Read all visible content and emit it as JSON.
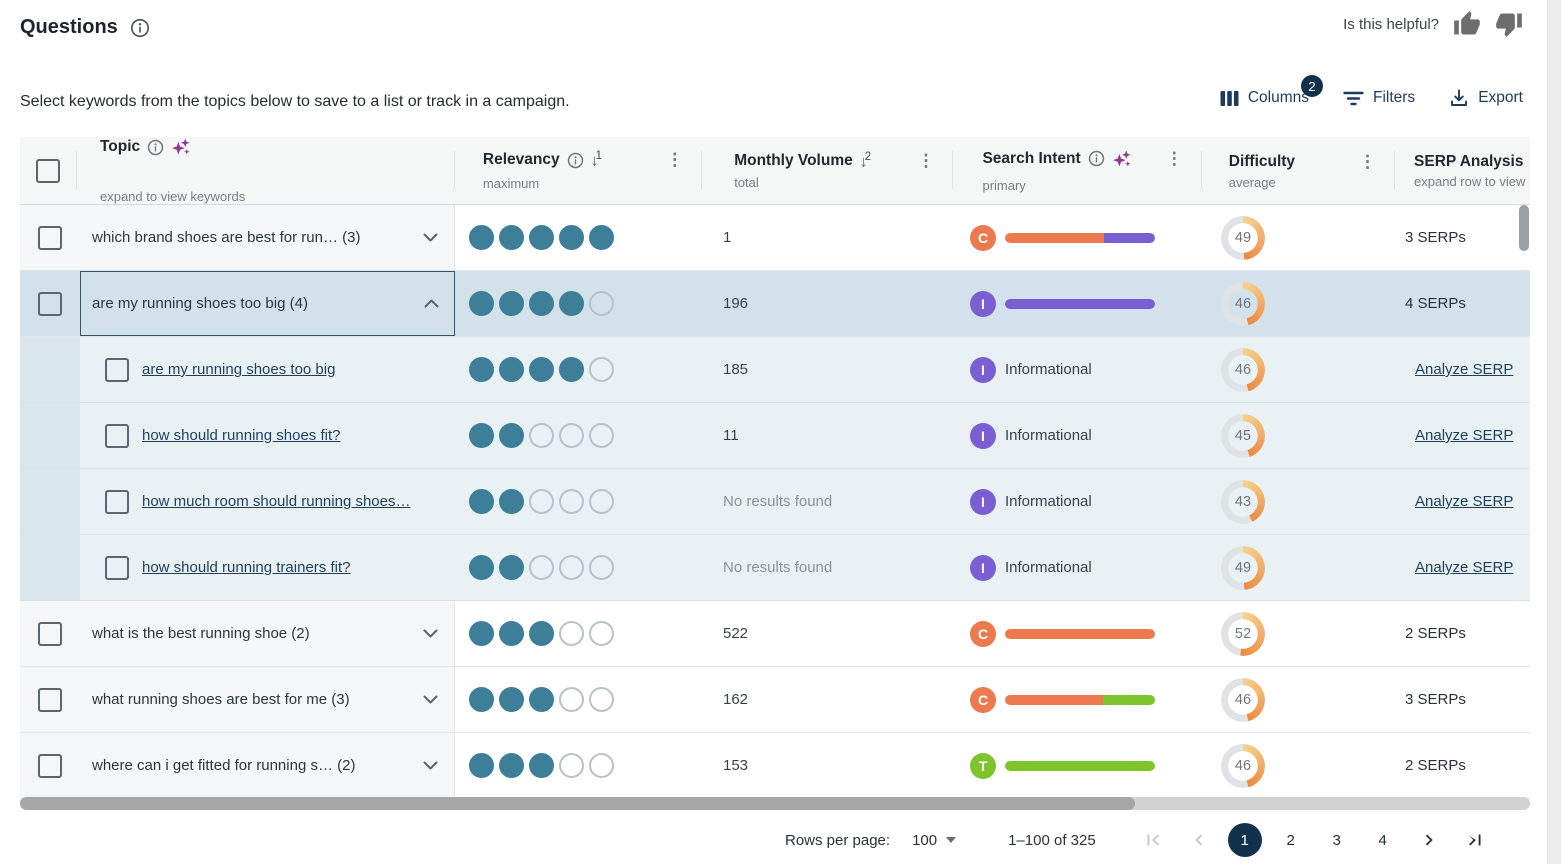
{
  "header": {
    "title": "Questions",
    "helpful_prompt": "Is this helpful?",
    "description": "Select keywords from the topics below to save to a list or track in a campaign.",
    "columns_button": "Columns",
    "columns_badge": "2",
    "filters_button": "Filters",
    "export_button": "Export"
  },
  "icons": {
    "kebab": "⋮",
    "sort_arrow": "↓"
  },
  "table": {
    "header": {
      "topic": {
        "label": "Topic",
        "sub": "expand to view keywords"
      },
      "relevancy": {
        "label": "Relevancy",
        "sub": "maximum",
        "sort_rank": "1"
      },
      "volume": {
        "label": "Monthly Volume",
        "sub": "total",
        "sort_rank": "2"
      },
      "intent": {
        "label": "Search Intent",
        "sub": "primary"
      },
      "difficulty": {
        "label": "Difficulty",
        "sub": "average"
      },
      "serp": {
        "label": "SERP Analysis",
        "sub": "expand row to view"
      }
    },
    "rows": [
      {
        "kind": "topic",
        "expanded": false,
        "label": "which brand shoes are best for run… (3)",
        "relevancy": 5,
        "volume": "1",
        "intent_badge": "C",
        "intent_segments": [
          {
            "type": "commercial",
            "pct": 66
          },
          {
            "type": "informational",
            "pct": 34
          }
        ],
        "difficulty": 49,
        "serp": "3 SERPs"
      },
      {
        "kind": "topic",
        "expanded": true,
        "label": "are my running shoes too big (4)",
        "relevancy": 4,
        "volume": "196",
        "intent_badge": "I",
        "intent_segments": [
          {
            "type": "informational",
            "pct": 100
          }
        ],
        "difficulty": 46,
        "serp": "4 SERPs"
      },
      {
        "kind": "keyword",
        "label": "are my running shoes too big",
        "relevancy": 4,
        "volume": "185",
        "intent_badge": "I",
        "intent_label": "Informational",
        "difficulty": 46,
        "serp": "Analyze SERP"
      },
      {
        "kind": "keyword",
        "label": "how should running shoes fit?",
        "relevancy": 2,
        "volume": "11",
        "intent_badge": "I",
        "intent_label": "Informational",
        "difficulty": 45,
        "serp": "Analyze SERP"
      },
      {
        "kind": "keyword",
        "label": "how much room should running shoes…",
        "relevancy": 2,
        "volume": "No results found",
        "intent_badge": "I",
        "intent_label": "Informational",
        "difficulty": 43,
        "serp": "Analyze SERP"
      },
      {
        "kind": "keyword",
        "label": "how should running trainers fit?",
        "relevancy": 2,
        "volume": "No results found",
        "intent_badge": "I",
        "intent_label": "Informational",
        "difficulty": 49,
        "serp": "Analyze SERP"
      },
      {
        "kind": "topic",
        "expanded": false,
        "label": "what is the best running shoe (2)",
        "relevancy": 3,
        "volume": "522",
        "intent_badge": "C",
        "intent_segments": [
          {
            "type": "commercial",
            "pct": 100
          }
        ],
        "difficulty": 52,
        "serp": "2 SERPs"
      },
      {
        "kind": "topic",
        "expanded": false,
        "label": "what running shoes are best for me (3)",
        "relevancy": 3,
        "volume": "162",
        "intent_badge": "C",
        "intent_segments": [
          {
            "type": "commercial",
            "pct": 65
          },
          {
            "type": "transactional",
            "pct": 35
          }
        ],
        "difficulty": 46,
        "serp": "3 SERPs"
      },
      {
        "kind": "topic",
        "expanded": false,
        "label": "where can i get fitted for running s… (2)",
        "relevancy": 3,
        "volume": "153",
        "intent_badge": "T",
        "intent_segments": [
          {
            "type": "transactional",
            "pct": 100
          }
        ],
        "difficulty": 46,
        "serp": "2 SERPs"
      }
    ]
  },
  "footer": {
    "rows_per_page_label": "Rows per page:",
    "rows_per_page_value": "100",
    "range": "1–100 of 325",
    "pages": [
      "1",
      "2",
      "3",
      "4"
    ],
    "current_page": "1"
  },
  "colors": {
    "commercial": "#ed7a4f",
    "informational": "#7a5fd2",
    "transactional": "#7ec52d",
    "difficulty_start": "#f6d28e",
    "difficulty_end": "#ec8a44",
    "difficulty_track": "#dfe3e5",
    "accent_navy": "#1d3c5c",
    "dot_teal": "#3d7e99",
    "selected_row": "#d3e2ea"
  }
}
